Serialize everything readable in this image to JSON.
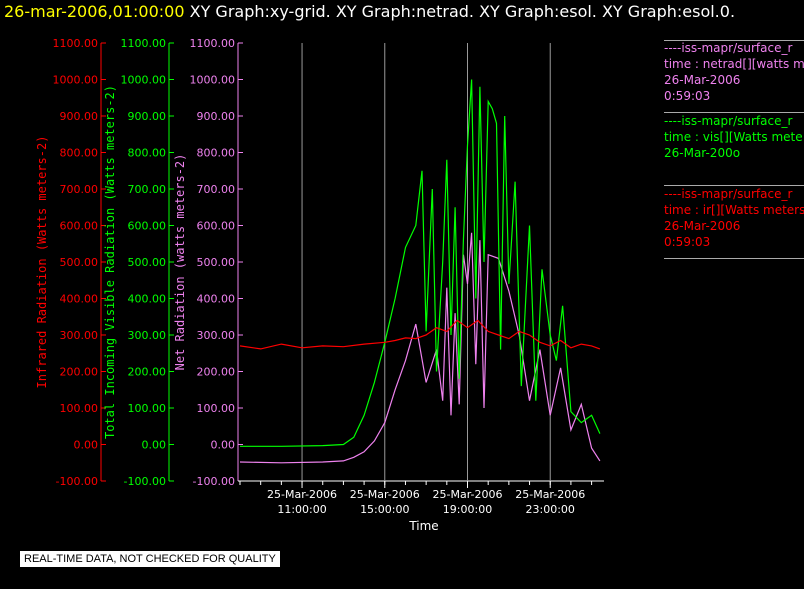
{
  "header": {
    "timestamp": "26-mar-2006,01:00:00",
    "graphs": "XY Graph:xy-grid.  XY Graph:netrad.  XY Graph:esol.  XY Graph:esol.0."
  },
  "legend": [
    {
      "color": "#ee82ee",
      "lines": [
        "----iss-mapr/surface_r",
        "time : netrad[][watts m",
        "26-Mar-2006",
        "0:59:03"
      ]
    },
    {
      "color": "#00ff00",
      "lines": [
        "----iss-mapr/surface_r",
        "time : vis[][Watts mete",
        "26-Mar-200o"
      ]
    },
    {
      "color": "#ff0000",
      "lines": [
        "----iss-mapr/surface_r",
        "time : ir[][Watts meters",
        "26-Mar-2006",
        "0:59:03"
      ]
    }
  ],
  "disclaimer": "REAL-TIME DATA, NOT CHECKED FOR QUALITY",
  "chart_data": {
    "type": "line",
    "xlabel": "Time",
    "xlim": [
      8.0,
      25.6
    ],
    "x_ticks": [
      {
        "value": 11,
        "label1": "25-Mar-2006",
        "label2": "11:00:00"
      },
      {
        "value": 15,
        "label1": "25-Mar-2006",
        "label2": "15:00:00"
      },
      {
        "value": 19,
        "label1": "25-Mar-2006",
        "label2": "19:00:00"
      },
      {
        "value": 23,
        "label1": "25-Mar-2006",
        "label2": "23:00:00"
      }
    ],
    "axes": [
      {
        "id": "ir",
        "color": "#ff0000",
        "label": "Infrared Radiation (Watts meters-2)",
        "ylim": [
          -100,
          1100
        ],
        "ticks": [
          "1100.00",
          "1000.00",
          "900.00",
          "800.00",
          "700.00",
          "600.00",
          "500.00",
          "400.00",
          "300.00",
          "200.00",
          "100.00",
          "0.00",
          "-100.00"
        ]
      },
      {
        "id": "vis",
        "color": "#00ff00",
        "label": "Total Incoming Visible Radiation (Watts meters-2)",
        "ylim": [
          -100,
          1100
        ],
        "ticks": [
          "1100.00",
          "1000.00",
          "900.00",
          "800.00",
          "700.00",
          "600.00",
          "500.00",
          "400.00",
          "300.00",
          "200.00",
          "100.00",
          "0.00",
          "-100.00"
        ]
      },
      {
        "id": "net",
        "color": "#ee82ee",
        "label": "Net Radiation (watts meters-2)",
        "ylim": [
          -100,
          1100
        ],
        "ticks": [
          "1100.00",
          "1000.00",
          "900.00",
          "800.00",
          "700.00",
          "600.00",
          "500.00",
          "400.00",
          "300.00",
          "200.00",
          "100.00",
          "0.00",
          "-100.00"
        ]
      }
    ],
    "vertical_grid": true,
    "series": [
      {
        "axis": "net",
        "color": "#ee82ee",
        "x": [
          8.0,
          10.0,
          12.0,
          13.0,
          13.5,
          14.0,
          14.5,
          15.0,
          15.5,
          16.0,
          16.5,
          17.0,
          17.5,
          17.8,
          18.0,
          18.2,
          18.4,
          18.6,
          18.8,
          19.0,
          19.2,
          19.4,
          19.6,
          19.8,
          20.0,
          20.5,
          21.0,
          21.5,
          22.0,
          22.5,
          23.0,
          23.5,
          24.0,
          24.5,
          25.0,
          25.4
        ],
        "y": [
          -48,
          -50,
          -48,
          -45,
          -35,
          -20,
          10,
          60,
          150,
          230,
          330,
          170,
          260,
          120,
          430,
          80,
          360,
          110,
          520,
          440,
          580,
          220,
          560,
          100,
          520,
          510,
          420,
          300,
          120,
          260,
          80,
          210,
          40,
          110,
          -10,
          -45
        ]
      },
      {
        "axis": "vis",
        "color": "#00ff00",
        "x": [
          8.0,
          10.0,
          12.0,
          13.0,
          13.5,
          14.0,
          14.5,
          15.0,
          15.5,
          16.0,
          16.5,
          16.8,
          17.0,
          17.3,
          17.5,
          17.8,
          18.0,
          18.2,
          18.4,
          18.6,
          18.8,
          19.0,
          19.2,
          19.4,
          19.6,
          19.8,
          20.0,
          20.2,
          20.4,
          20.6,
          20.8,
          21.0,
          21.3,
          21.6,
          22.0,
          22.3,
          22.6,
          23.0,
          23.3,
          23.6,
          24.0,
          24.5,
          25.0,
          25.4
        ],
        "y": [
          -5,
          -5,
          -3,
          0,
          20,
          80,
          170,
          280,
          400,
          540,
          600,
          750,
          310,
          700,
          200,
          500,
          780,
          300,
          650,
          180,
          560,
          820,
          1000,
          400,
          980,
          500,
          940,
          920,
          880,
          260,
          900,
          440,
          720,
          160,
          600,
          120,
          480,
          300,
          230,
          380,
          90,
          60,
          80,
          30
        ]
      },
      {
        "axis": "ir",
        "color": "#ff0000",
        "x": [
          8.0,
          9.0,
          10.0,
          11.0,
          12.0,
          13.0,
          14.0,
          15.0,
          15.5,
          16.0,
          16.5,
          17.0,
          17.5,
          18.0,
          18.5,
          19.0,
          19.5,
          20.0,
          20.5,
          21.0,
          21.5,
          22.0,
          22.5,
          23.0,
          23.5,
          24.0,
          24.5,
          25.0,
          25.4
        ],
        "y": [
          270,
          262,
          275,
          265,
          270,
          268,
          275,
          280,
          285,
          292,
          290,
          300,
          320,
          310,
          340,
          320,
          340,
          310,
          300,
          290,
          310,
          300,
          280,
          270,
          285,
          265,
          275,
          270,
          262
        ]
      }
    ]
  }
}
